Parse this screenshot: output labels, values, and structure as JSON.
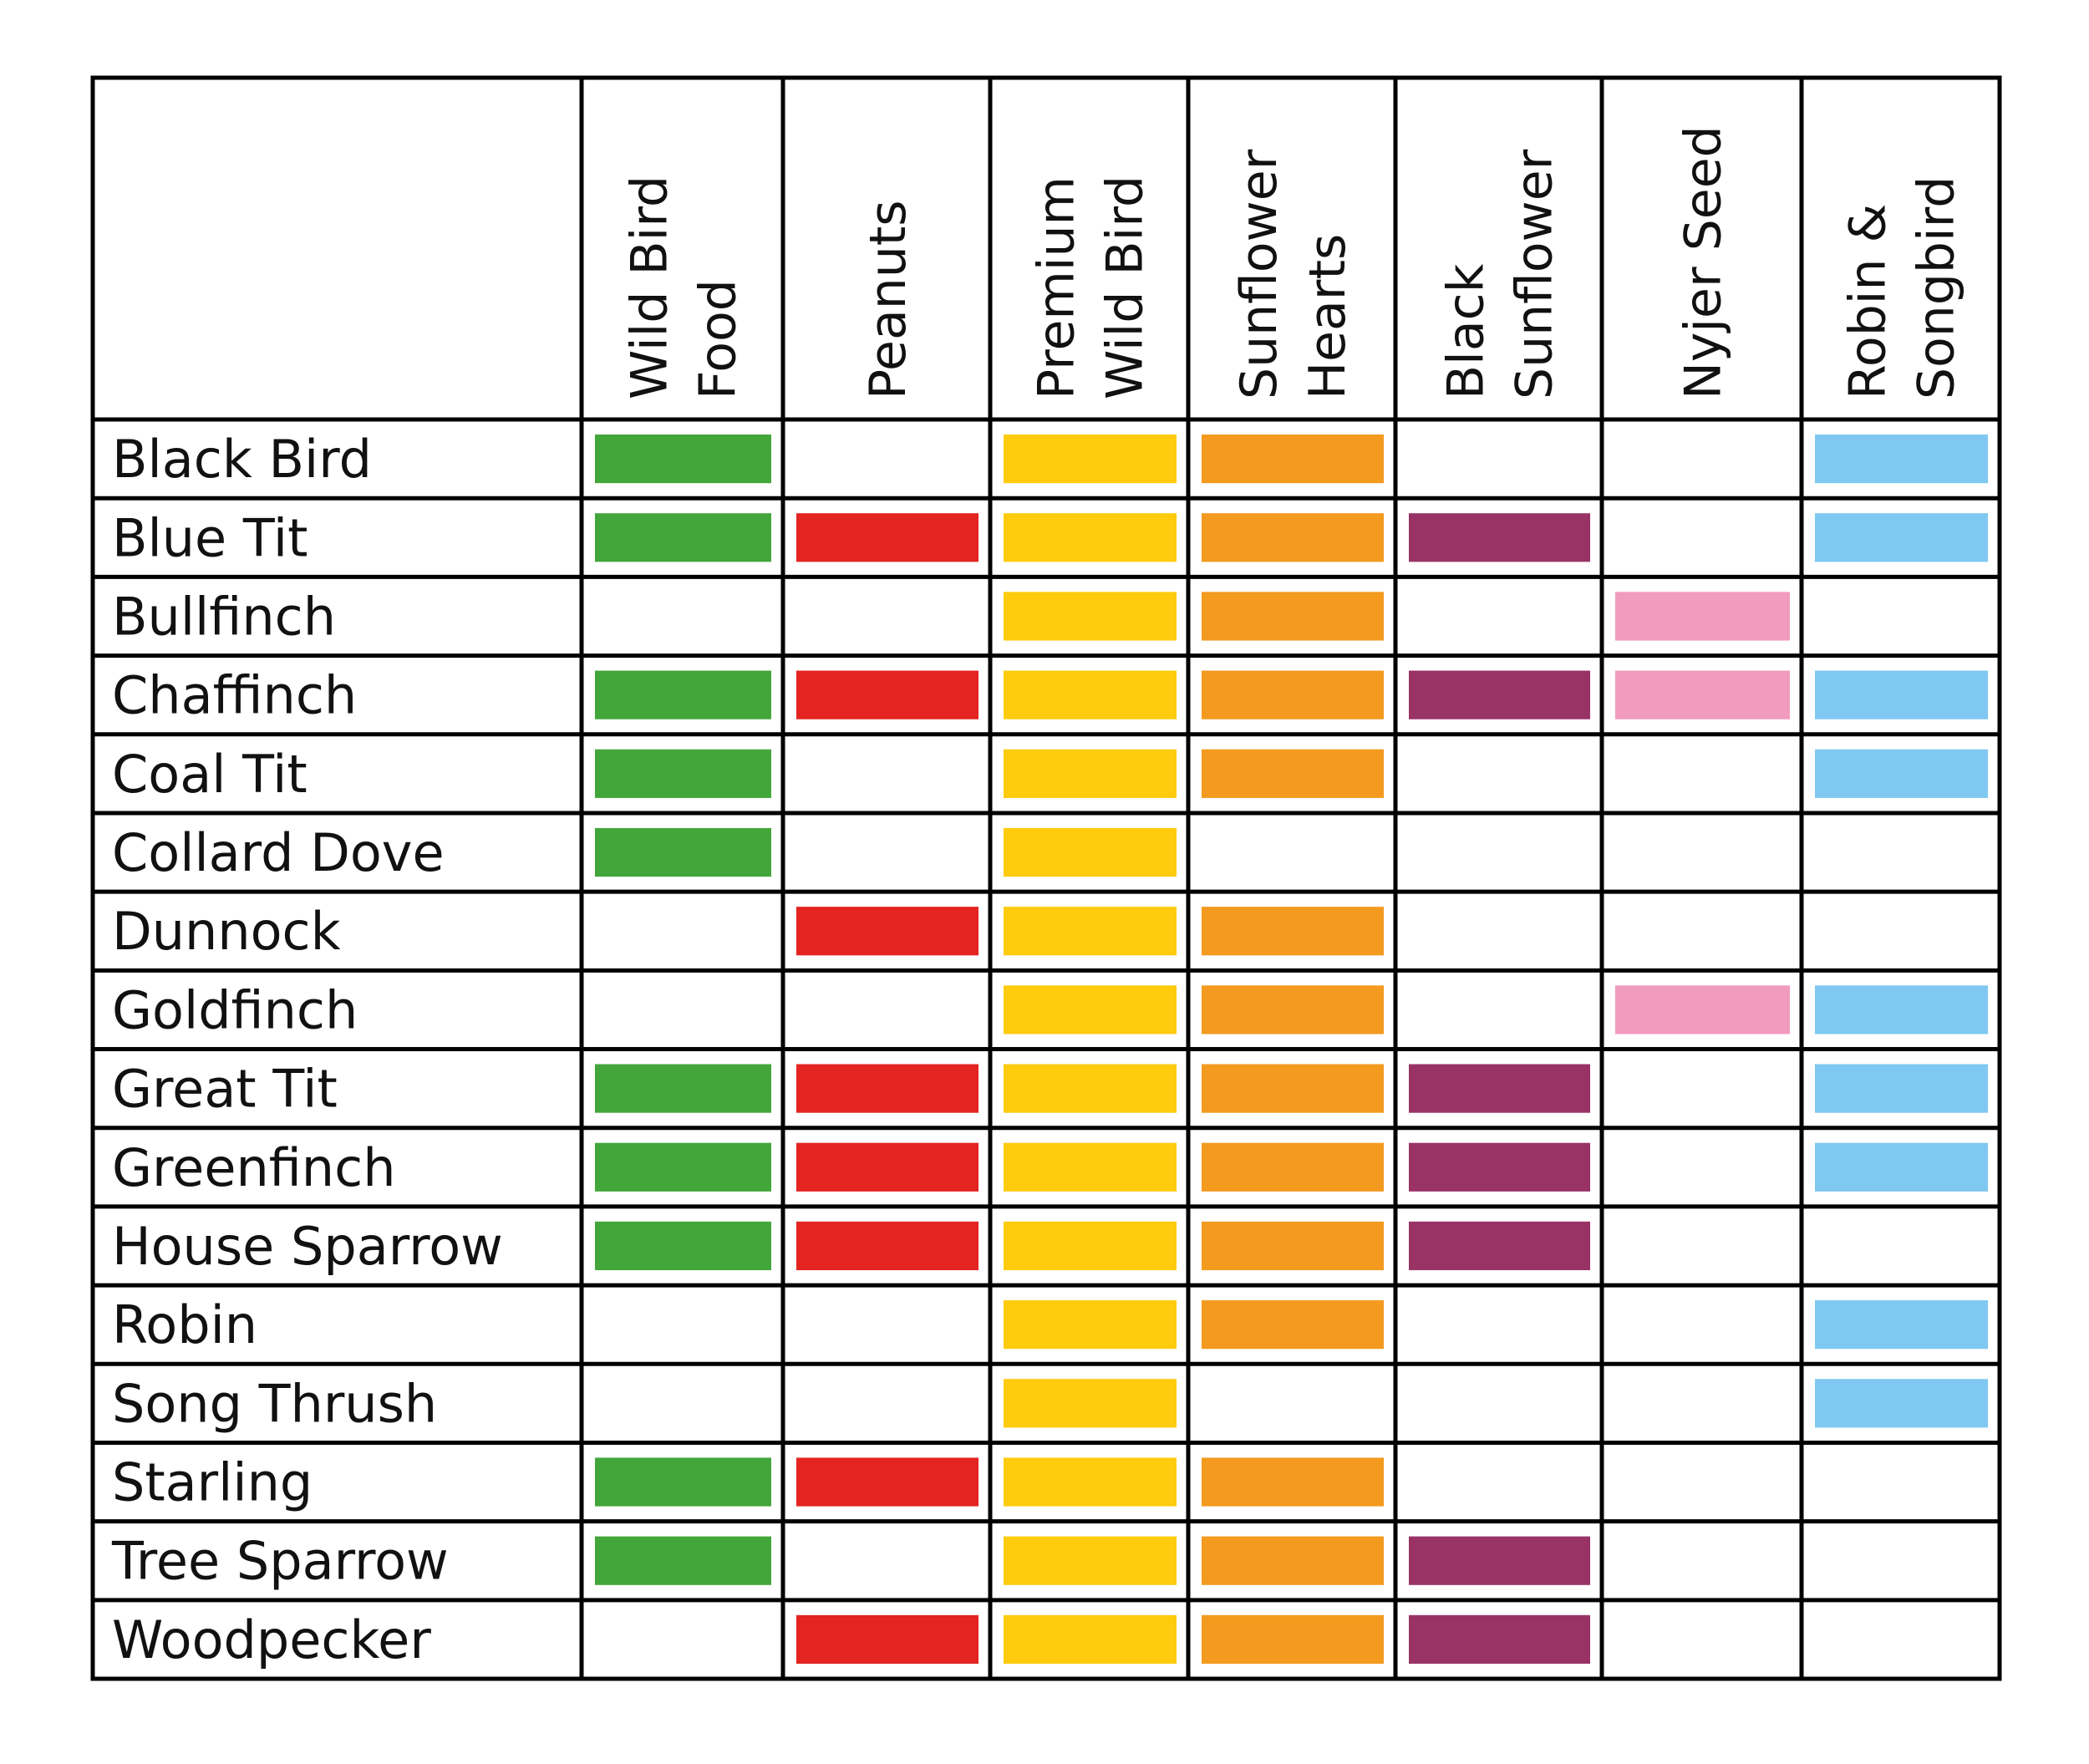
{
  "chart_data": {
    "type": "table",
    "title": "",
    "columns": [
      {
        "lines": [
          "Wild Bird",
          "Food"
        ],
        "color": "#43a63a"
      },
      {
        "lines": [
          "Peanuts"
        ],
        "color": "#e32420"
      },
      {
        "lines": [
          "Premium",
          "Wild Bird"
        ],
        "color": "#fecb0d"
      },
      {
        "lines": [
          "Sunflower",
          "Hearts"
        ],
        "color": "#f39a1f"
      },
      {
        "lines": [
          "Black",
          "Sunflower"
        ],
        "color": "#993366"
      },
      {
        "lines": [
          "Nyjer Seed"
        ],
        "color": "#f19bbf"
      },
      {
        "lines": [
          "Robin &",
          "Songbird"
        ],
        "color": "#7fc8f2"
      }
    ],
    "rows": [
      {
        "name": "Black Bird",
        "feeds": [
          1,
          0,
          1,
          1,
          0,
          0,
          1
        ]
      },
      {
        "name": "Blue Tit",
        "feeds": [
          1,
          1,
          1,
          1,
          1,
          0,
          1
        ]
      },
      {
        "name": "Bullfinch",
        "feeds": [
          0,
          0,
          1,
          1,
          0,
          1,
          0
        ]
      },
      {
        "name": "Chaffinch",
        "feeds": [
          1,
          1,
          1,
          1,
          1,
          1,
          1
        ]
      },
      {
        "name": "Coal Tit",
        "feeds": [
          1,
          0,
          1,
          1,
          0,
          0,
          1
        ]
      },
      {
        "name": "Collard Dove",
        "feeds": [
          1,
          0,
          1,
          0,
          0,
          0,
          0
        ]
      },
      {
        "name": "Dunnock",
        "feeds": [
          0,
          1,
          1,
          1,
          0,
          0,
          0
        ]
      },
      {
        "name": "Goldfinch",
        "feeds": [
          0,
          0,
          1,
          1,
          0,
          1,
          1
        ]
      },
      {
        "name": "Great Tit",
        "feeds": [
          1,
          1,
          1,
          1,
          1,
          0,
          1
        ]
      },
      {
        "name": "Greenfinch",
        "feeds": [
          1,
          1,
          1,
          1,
          1,
          0,
          1
        ]
      },
      {
        "name": "House Sparrow",
        "feeds": [
          1,
          1,
          1,
          1,
          1,
          0,
          0
        ]
      },
      {
        "name": "Robin",
        "feeds": [
          0,
          0,
          1,
          1,
          0,
          0,
          1
        ]
      },
      {
        "name": "Song Thrush",
        "feeds": [
          0,
          0,
          1,
          0,
          0,
          0,
          1
        ]
      },
      {
        "name": "Starling",
        "feeds": [
          1,
          1,
          1,
          1,
          0,
          0,
          0
        ]
      },
      {
        "name": "Tree Sparrow",
        "feeds": [
          1,
          0,
          1,
          1,
          1,
          0,
          0
        ]
      },
      {
        "name": "Woodpecker",
        "feeds": [
          0,
          1,
          1,
          1,
          1,
          0,
          0
        ]
      }
    ]
  }
}
